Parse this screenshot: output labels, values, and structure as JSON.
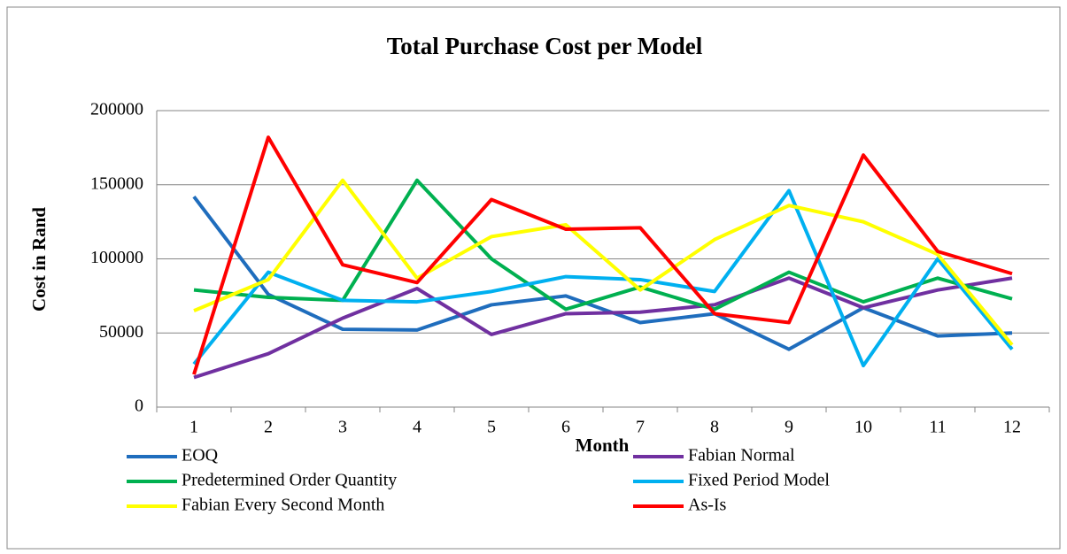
{
  "chart_data": {
    "type": "line",
    "title": "Total Purchase Cost per Model",
    "x_label": "Month",
    "y_label": "Cost in Rand",
    "categories": [
      1,
      2,
      3,
      4,
      5,
      6,
      7,
      8,
      9,
      10,
      11,
      12
    ],
    "ylim": [
      0,
      200000
    ],
    "yticks": [
      0,
      50000,
      100000,
      150000,
      200000
    ],
    "grid": true,
    "legend": "bottom",
    "series": [
      {
        "name": "EOQ",
        "color": "#1f6dbd",
        "values": [
          142000,
          76000,
          52500,
          52000,
          69000,
          75000,
          57000,
          63000,
          39000,
          67000,
          48000,
          50000
        ]
      },
      {
        "name": "Fabian Normal",
        "color": "#7030a0",
        "values": [
          20000,
          36000,
          60000,
          80000,
          49000,
          63000,
          64000,
          69000,
          87000,
          67000,
          79000,
          87000
        ]
      },
      {
        "name": "Predetermined Order Quantity",
        "color": "#00b050",
        "values": [
          79000,
          74000,
          72000,
          153000,
          100000,
          66000,
          81000,
          66000,
          91000,
          71000,
          87000,
          73000
        ]
      },
      {
        "name": "Fixed Period Model",
        "color": "#00b0f0",
        "values": [
          29000,
          91000,
          72000,
          71000,
          78000,
          88000,
          86000,
          78000,
          146000,
          28000,
          100000,
          39000
        ]
      },
      {
        "name": "Fabian Every Second Month",
        "color": "#ffff00",
        "values": [
          65000,
          86000,
          153000,
          87000,
          115000,
          123000,
          79000,
          113000,
          136000,
          125000,
          103000,
          42000
        ]
      },
      {
        "name": "As-Is",
        "color": "#ff0000",
        "values": [
          22000,
          182000,
          96000,
          84000,
          140000,
          120000,
          121000,
          63000,
          57000,
          170000,
          105000,
          90000
        ]
      }
    ]
  }
}
